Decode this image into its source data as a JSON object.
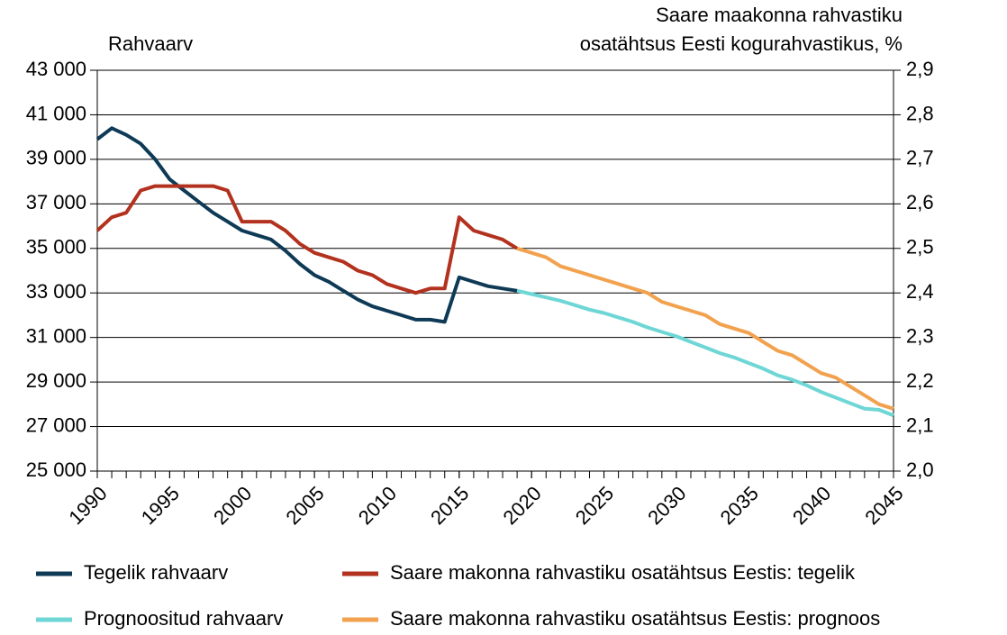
{
  "chart_data": {
    "type": "line",
    "y_label": "Rahvaarv",
    "y2_label": [
      "Saare maakonna rahvastiku",
      "osatähtsus Eesti kogurahvastikus, %"
    ],
    "x": [
      1990,
      1991,
      1992,
      1993,
      1994,
      1995,
      1996,
      1997,
      1998,
      1999,
      2000,
      2001,
      2002,
      2003,
      2004,
      2005,
      2006,
      2007,
      2008,
      2009,
      2010,
      2011,
      2012,
      2013,
      2014,
      2015,
      2016,
      2017,
      2018,
      2019,
      2020,
      2021,
      2022,
      2023,
      2024,
      2025,
      2026,
      2027,
      2028,
      2029,
      2030,
      2031,
      2032,
      2033,
      2034,
      2035,
      2036,
      2037,
      2038,
      2039,
      2040,
      2041,
      2042,
      2043,
      2044,
      2045
    ],
    "xlim": [
      1990,
      2045
    ],
    "xticks": [
      1990,
      1995,
      2000,
      2005,
      2010,
      2015,
      2020,
      2025,
      2030,
      2035,
      2040,
      2045
    ],
    "ylim": [
      25000,
      43000
    ],
    "yticks": [
      {
        "value": 25000,
        "label": "25 000"
      },
      {
        "value": 27000,
        "label": "27 000"
      },
      {
        "value": 29000,
        "label": "29 000"
      },
      {
        "value": 31000,
        "label": "31 000"
      },
      {
        "value": 33000,
        "label": "33 000"
      },
      {
        "value": 35000,
        "label": "35 000"
      },
      {
        "value": 37000,
        "label": "37 000"
      },
      {
        "value": 39000,
        "label": "39 000"
      },
      {
        "value": 41000,
        "label": "41 000"
      },
      {
        "value": 43000,
        "label": "43 000"
      }
    ],
    "y2lim": [
      2.0,
      2.9
    ],
    "y2ticks": [
      {
        "value": 2.0,
        "label": "2,0"
      },
      {
        "value": 2.1,
        "label": "2,1"
      },
      {
        "value": 2.2,
        "label": "2,2"
      },
      {
        "value": 2.3,
        "label": "2,3"
      },
      {
        "value": 2.4,
        "label": "2,4"
      },
      {
        "value": 2.5,
        "label": "2,5"
      },
      {
        "value": 2.6,
        "label": "2,6"
      },
      {
        "value": 2.7,
        "label": "2,7"
      },
      {
        "value": 2.8,
        "label": "2,8"
      },
      {
        "value": 2.9,
        "label": "2,9"
      }
    ],
    "grid": true,
    "series": [
      {
        "name": "Tegelik rahvaarv",
        "color": "#0e3a56",
        "axis": "y",
        "values": [
          39900,
          40400,
          40100,
          39700,
          39000,
          38100,
          37600,
          37100,
          36600,
          36200,
          35800,
          35600,
          35400,
          34900,
          34300,
          33800,
          33500,
          33100,
          32700,
          32400,
          32200,
          32000,
          31800,
          31800,
          31700,
          33700,
          33500,
          33300,
          33200,
          33100,
          null,
          null,
          null,
          null,
          null,
          null,
          null,
          null,
          null,
          null,
          null,
          null,
          null,
          null,
          null,
          null,
          null,
          null,
          null,
          null,
          null,
          null,
          null,
          null,
          null,
          null
        ]
      },
      {
        "name": "Prognoositud rahvaarv",
        "color": "#6fd6d6",
        "axis": "y",
        "values": [
          null,
          null,
          null,
          null,
          null,
          null,
          null,
          null,
          null,
          null,
          null,
          null,
          null,
          null,
          null,
          null,
          null,
          null,
          null,
          null,
          null,
          null,
          null,
          null,
          null,
          null,
          null,
          null,
          null,
          33100,
          32950,
          32800,
          32650,
          32450,
          32250,
          32100,
          31900,
          31700,
          31450,
          31250,
          31050,
          30800,
          30550,
          30300,
          30100,
          29850,
          29600,
          29300,
          29100,
          28850,
          28550,
          28300,
          28050,
          27800,
          27750,
          27500
        ]
      },
      {
        "name": "Saare makonna rahvastiku osatähtsus Eestis: tegelik",
        "color": "#b3321f",
        "axis": "y2",
        "values": [
          2.54,
          2.57,
          2.58,
          2.63,
          2.64,
          2.64,
          2.64,
          2.64,
          2.64,
          2.63,
          2.56,
          2.56,
          2.56,
          2.54,
          2.51,
          2.49,
          2.48,
          2.47,
          2.45,
          2.44,
          2.42,
          2.41,
          2.4,
          2.41,
          2.41,
          2.57,
          2.54,
          2.53,
          2.52,
          2.5,
          null,
          null,
          null,
          null,
          null,
          null,
          null,
          null,
          null,
          null,
          null,
          null,
          null,
          null,
          null,
          null,
          null,
          null,
          null,
          null,
          null,
          null,
          null,
          null,
          null,
          null
        ]
      },
      {
        "name": "Saare makonna rahvastiku osatähtsus Eestis: prognoos",
        "color": "#f2a24f",
        "axis": "y2",
        "values": [
          null,
          null,
          null,
          null,
          null,
          null,
          null,
          null,
          null,
          null,
          null,
          null,
          null,
          null,
          null,
          null,
          null,
          null,
          null,
          null,
          null,
          null,
          null,
          null,
          null,
          null,
          null,
          null,
          null,
          2.5,
          2.49,
          2.48,
          2.46,
          2.45,
          2.44,
          2.43,
          2.42,
          2.41,
          2.4,
          2.38,
          2.37,
          2.36,
          2.35,
          2.33,
          2.32,
          2.31,
          2.29,
          2.27,
          2.26,
          2.24,
          2.22,
          2.21,
          2.19,
          2.17,
          2.15,
          2.14
        ]
      }
    ]
  }
}
